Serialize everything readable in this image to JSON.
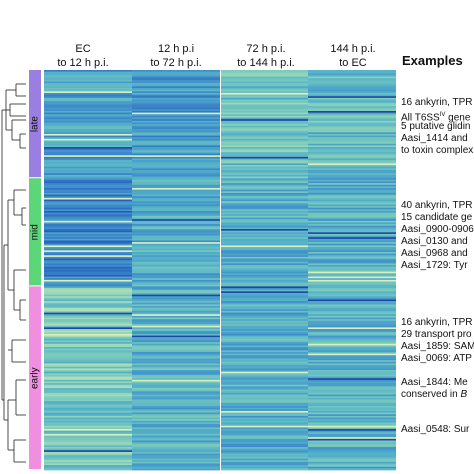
{
  "chart_data": {
    "type": "heatmap",
    "title": "",
    "columns": [
      {
        "line1": "EC",
        "line2": "to 12 h p.i."
      },
      {
        "line1": "12 h p.i",
        "line2": "to 72 h p.i."
      },
      {
        "line1": "72 h p.i.",
        "line2": "to 144 h p.i."
      },
      {
        "line1": "144 h p.i.",
        "line2": "to EC"
      }
    ],
    "groups": [
      {
        "name": "late",
        "color": "#9b7fe0",
        "rows": 66
      },
      {
        "name": "mid",
        "color": "#5dd67a",
        "rows": 66
      },
      {
        "name": "early",
        "color": "#f08ee0",
        "rows": 112
      }
    ],
    "colorscale": [
      "#1a3a9e",
      "#2a63c0",
      "#3f8fcb",
      "#56b3c8",
      "#7fcdbb",
      "#c7e9b4",
      "#ecf7c0"
    ],
    "band_profiles": {
      "late": [
        0.42,
        0.4,
        0.58,
        0.55
      ],
      "mid": [
        0.3,
        0.48,
        0.5,
        0.5
      ],
      "early": [
        0.62,
        0.5,
        0.48,
        0.5
      ]
    },
    "examples_title": "Examples",
    "examples": [
      {
        "text": "16 ankyrin, TPR",
        "sup": ""
      },
      {
        "text": "All T6SS",
        "sup": "IV",
        "after": " gene"
      },
      {
        "text": "5 putative glidin",
        "sup": ""
      },
      {
        "text": "Aasi_1414 and",
        "sup": ""
      },
      {
        "text": "to toxin complex",
        "sup": ""
      },
      {
        "text": "40 ankyrin, TPR",
        "sup": ""
      },
      {
        "text": "15 candidate ge",
        "sup": ""
      },
      {
        "text": "Aasi_0900-0906",
        "sup": ""
      },
      {
        "text": "Aasi_0130 and",
        "sup": ""
      },
      {
        "text": "Aasi_0968 and",
        "sup": ""
      },
      {
        "text": "Aasi_1729: Tyr",
        "sup": ""
      },
      {
        "text": "16 ankyrin, TPR",
        "sup": ""
      },
      {
        "text": "29 transport pro",
        "sup": ""
      },
      {
        "text": "Aasi_1859: SAM",
        "sup": ""
      },
      {
        "text": "Aasi_0069: ATP",
        "sup": ""
      },
      {
        "text": "Aasi_1844: Me",
        "sup": ""
      },
      {
        "text": "conserved in B",
        "sup": "",
        "italic_tail": true
      },
      {
        "text": "Aasi_0548: Sur",
        "sup": ""
      }
    ]
  }
}
